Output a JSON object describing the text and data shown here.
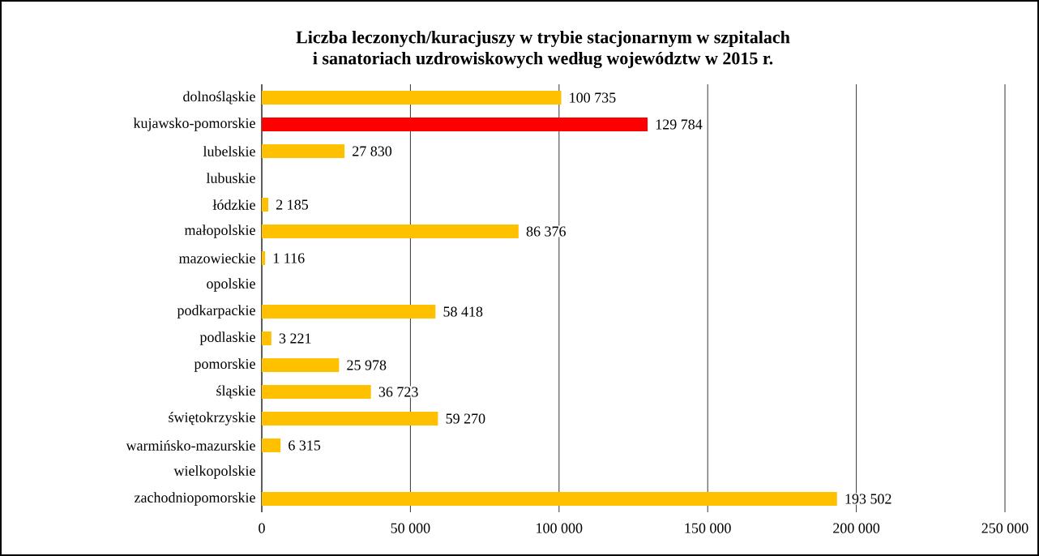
{
  "chart_data": {
    "type": "bar",
    "orientation": "horizontal",
    "title": "Liczba leczonych/kuracjuszy w trybie stacjonarnym w szpitalach\ni sanatoriach uzdrowiskowych według województw w 2015 r.",
    "categories": [
      "dolnośląskie",
      "kujawsko-pomorskie",
      "lubelskie",
      "lubuskie",
      "łódzkie",
      "małopolskie",
      "mazowieckie",
      "opolskie",
      "podkarpackie",
      "podlaskie",
      "pomorskie",
      "śląskie",
      "świętokrzyskie",
      "warmińsko-mazurskie",
      "wielkopolskie",
      "zachodniopomorskie"
    ],
    "values": [
      100735,
      129784,
      27830,
      null,
      2185,
      86376,
      1116,
      null,
      58418,
      3221,
      25978,
      36723,
      59270,
      6315,
      null,
      193502
    ],
    "value_labels": [
      "100 735",
      "129 784",
      "27 830",
      null,
      "2 185",
      "86 376",
      "1 116",
      null,
      "58 418",
      "3 221",
      "25 978",
      "36 723",
      "59 270",
      "6 315",
      null,
      "193 502"
    ],
    "colors": [
      "#ffc000",
      "#ff0000",
      "#ffc000",
      "#ffc000",
      "#ffc000",
      "#ffc000",
      "#ffc000",
      "#ffc000",
      "#ffc000",
      "#ffc000",
      "#ffc000",
      "#ffc000",
      "#ffc000",
      "#ffc000",
      "#ffc000",
      "#ffc000"
    ],
    "xlim": [
      0,
      250000
    ],
    "xticks": [
      0,
      {
        "value": 50000,
        "label": "50 000"
      },
      {
        "value": 100000,
        "label": "100 000"
      },
      {
        "value": 150000,
        "label": "150 000"
      },
      {
        "value": 200000,
        "label": "200 000"
      },
      {
        "value": 250000,
        "label": "250 000"
      }
    ],
    "grid": "x"
  }
}
